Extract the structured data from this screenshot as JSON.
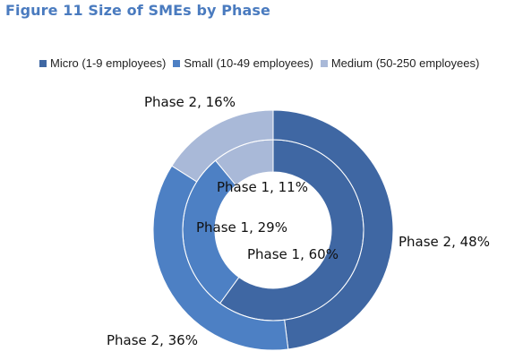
{
  "title": "Figure 11 Size of SMEs by Phase",
  "colors": {
    "micro": "#3f67a3",
    "small": "#4d80c4",
    "medium": "#a9b9d8"
  },
  "chart_data": {
    "type": "doughnut",
    "title": "Figure 11 Size of SMEs by Phase",
    "categories": [
      "Micro (1-9 employees)",
      "Small (10-49 employees)",
      "Medium (50-250 employees)"
    ],
    "legend_position": "top",
    "series": [
      {
        "name": "Phase 1",
        "ring": "inner",
        "values": [
          60,
          29,
          11
        ]
      },
      {
        "name": "Phase 2",
        "ring": "outer",
        "values": [
          48,
          36,
          16
        ]
      }
    ],
    "data_labels": {
      "inner": [
        "Phase 1, 60%",
        "Phase 1, 29%",
        "Phase 1, 11%"
      ],
      "outer": [
        "Phase 2, 48%",
        "Phase 2, 36%",
        "Phase 2, 16%"
      ]
    }
  }
}
